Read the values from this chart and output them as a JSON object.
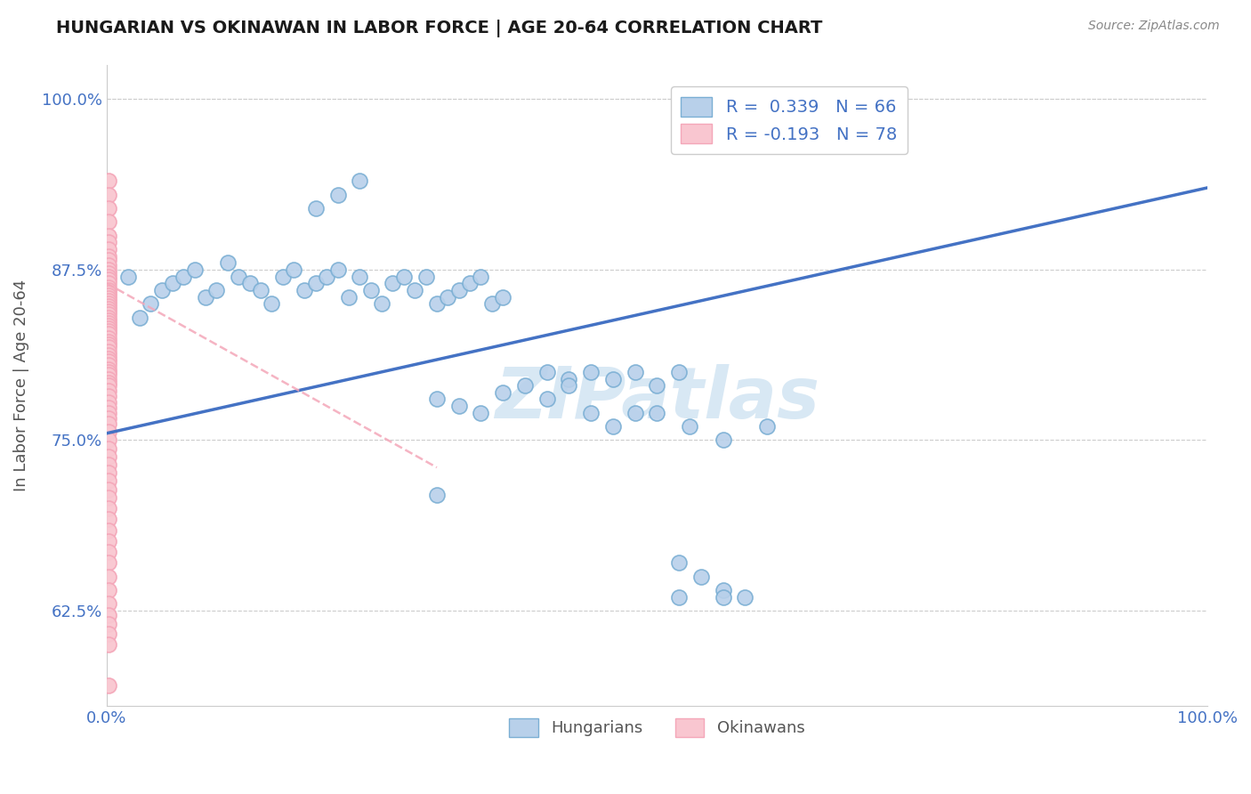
{
  "title": "HUNGARIAN VS OKINAWAN IN LABOR FORCE | AGE 20-64 CORRELATION CHART",
  "source": "Source: ZipAtlas.com",
  "ylabel": "In Labor Force | Age 20-64",
  "xlim": [
    0.0,
    1.0
  ],
  "ylim": [
    0.555,
    1.025
  ],
  "yticks": [
    0.625,
    0.75,
    0.875,
    1.0
  ],
  "ytick_labels": [
    "62.5%",
    "75.0%",
    "87.5%",
    "100.0%"
  ],
  "xtick_labels": [
    "0.0%",
    "100.0%"
  ],
  "hungarian_color": "#b8d0ea",
  "hungarian_edge": "#7bafd4",
  "okinawan_color": "#f9c6d0",
  "okinawan_edge": "#f4a7b9",
  "trendline_hungarian_color": "#4472c4",
  "trendline_okinawan_color": "#f4a7b9",
  "watermark": "ZIPatlas",
  "watermark_color": "#d8e8f4",
  "background_color": "#ffffff",
  "legend_r_color": "#4472c4",
  "trendline_hung_x0": 0.0,
  "trendline_hung_x1": 1.0,
  "trendline_hung_y0": 0.755,
  "trendline_hung_y1": 0.935,
  "trendline_okin_x0": 0.0,
  "trendline_okin_x1": 0.3,
  "trendline_okin_y0": 0.865,
  "trendline_okin_y1": 0.73,
  "hung_x": [
    0.02,
    0.03,
    0.04,
    0.05,
    0.06,
    0.07,
    0.08,
    0.09,
    0.1,
    0.11,
    0.12,
    0.13,
    0.14,
    0.15,
    0.16,
    0.17,
    0.18,
    0.19,
    0.2,
    0.21,
    0.22,
    0.23,
    0.24,
    0.25,
    0.26,
    0.27,
    0.28,
    0.29,
    0.3,
    0.31,
    0.32,
    0.33,
    0.34,
    0.35,
    0.36,
    0.38,
    0.4,
    0.42,
    0.44,
    0.46,
    0.48,
    0.5,
    0.52,
    0.3,
    0.32,
    0.34,
    0.36,
    0.4,
    0.42,
    0.44,
    0.46,
    0.48,
    0.5,
    0.53,
    0.56,
    0.6,
    0.52,
    0.54,
    0.56,
    0.3,
    0.56,
    0.58,
    0.52,
    0.19,
    0.21,
    0.23
  ],
  "hung_y": [
    0.87,
    0.84,
    0.85,
    0.86,
    0.865,
    0.87,
    0.875,
    0.855,
    0.86,
    0.88,
    0.87,
    0.865,
    0.86,
    0.85,
    0.87,
    0.875,
    0.86,
    0.865,
    0.87,
    0.875,
    0.855,
    0.87,
    0.86,
    0.85,
    0.865,
    0.87,
    0.86,
    0.87,
    0.85,
    0.855,
    0.86,
    0.865,
    0.87,
    0.85,
    0.855,
    0.79,
    0.8,
    0.795,
    0.8,
    0.795,
    0.8,
    0.79,
    0.8,
    0.78,
    0.775,
    0.77,
    0.785,
    0.78,
    0.79,
    0.77,
    0.76,
    0.77,
    0.77,
    0.76,
    0.75,
    0.76,
    0.66,
    0.65,
    0.64,
    0.71,
    0.635,
    0.635,
    0.635,
    0.92,
    0.93,
    0.94
  ],
  "okin_x": [
    0.002,
    0.002,
    0.002,
    0.002,
    0.002,
    0.002,
    0.002,
    0.002,
    0.002,
    0.002,
    0.002,
    0.002,
    0.002,
    0.002,
    0.002,
    0.002,
    0.002,
    0.002,
    0.002,
    0.002,
    0.002,
    0.002,
    0.002,
    0.002,
    0.002,
    0.002,
    0.002,
    0.002,
    0.002,
    0.002,
    0.002,
    0.002,
    0.002,
    0.002,
    0.002,
    0.002,
    0.002,
    0.002,
    0.002,
    0.002,
    0.002,
    0.002,
    0.002,
    0.002,
    0.002,
    0.002,
    0.002,
    0.002,
    0.002,
    0.002,
    0.002,
    0.002,
    0.002,
    0.002,
    0.002,
    0.002,
    0.002,
    0.002,
    0.002,
    0.002,
    0.002,
    0.002,
    0.002,
    0.002,
    0.002,
    0.002,
    0.002,
    0.002,
    0.002,
    0.002,
    0.002,
    0.002,
    0.002,
    0.002,
    0.002,
    0.002,
    0.002,
    0.002
  ],
  "okin_y": [
    0.94,
    0.93,
    0.92,
    0.91,
    0.9,
    0.895,
    0.89,
    0.885,
    0.882,
    0.878,
    0.875,
    0.872,
    0.87,
    0.868,
    0.865,
    0.862,
    0.86,
    0.858,
    0.856,
    0.854,
    0.852,
    0.85,
    0.848,
    0.846,
    0.844,
    0.842,
    0.84,
    0.838,
    0.836,
    0.834,
    0.832,
    0.83,
    0.828,
    0.825,
    0.822,
    0.82,
    0.818,
    0.815,
    0.812,
    0.81,
    0.808,
    0.805,
    0.802,
    0.8,
    0.798,
    0.795,
    0.792,
    0.79,
    0.786,
    0.782,
    0.778,
    0.774,
    0.77,
    0.766,
    0.762,
    0.756,
    0.75,
    0.744,
    0.738,
    0.732,
    0.726,
    0.72,
    0.714,
    0.708,
    0.7,
    0.692,
    0.684,
    0.676,
    0.668,
    0.66,
    0.65,
    0.64,
    0.63,
    0.622,
    0.615,
    0.608,
    0.6,
    0.57
  ]
}
